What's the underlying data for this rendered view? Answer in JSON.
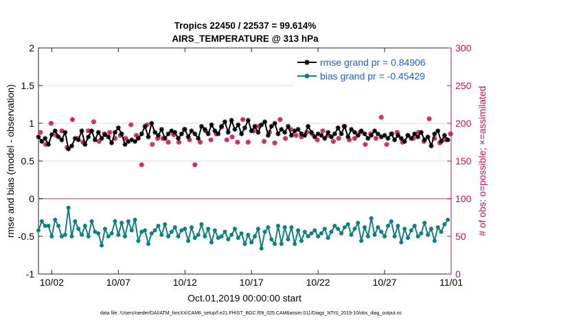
{
  "chart_data": {
    "type": "line",
    "title_line1": "Tropics 22450 / 22537 = 99.614%",
    "title_line2": "AIRS_TEMPERATURE @ 313 hPa",
    "xlabel": "Oct.01,2019 00:00:00 start",
    "ylabel_left": "rmse and bias (model - observation)",
    "ylabel_right": "# of obs: o=possible; ×=assimilated",
    "footnote": "data file: /Users/raeder/DAI/ATM_forcXX/CAM6_setup/f.e21.FHIST_BGC.f09_025.CAM6assim.011/Diags_NTrS_2019-10/obs_diag_output.nc",
    "xlim": [
      0,
      31
    ],
    "ylim_left": [
      -1,
      2
    ],
    "ylim_right": [
      0,
      300
    ],
    "x_ticks": [
      1,
      6,
      11,
      16,
      21,
      26,
      31
    ],
    "x_tick_labels": [
      "10/02",
      "10/07",
      "10/12",
      "10/17",
      "10/22",
      "10/27",
      "11/01"
    ],
    "y_left_ticks": [
      "-1",
      "-0.5",
      "0",
      "0.5",
      "1",
      "1.5",
      "2"
    ],
    "y_right_ticks": [
      "0",
      "50",
      "100",
      "150",
      "200",
      "250",
      "300"
    ],
    "colors": {
      "rmse": "#000000",
      "bias": "#0e8080",
      "obs": "#cc0a50",
      "right_axis": "#cc0a50",
      "legend_text": "#1a5fd6"
    },
    "series": [
      {
        "name": "rmse grand pr = 0.84906",
        "color": "#000000",
        "x": [
          0.0,
          0.25,
          0.5,
          0.75,
          1.0,
          1.25,
          1.5,
          1.75,
          2.0,
          2.25,
          2.5,
          2.75,
          3.0,
          3.25,
          3.5,
          3.75,
          4.0,
          4.25,
          4.5,
          4.75,
          5.0,
          5.25,
          5.5,
          5.75,
          6.0,
          6.25,
          6.5,
          6.75,
          7.0,
          7.25,
          7.5,
          7.75,
          8.0,
          8.25,
          8.5,
          8.75,
          9.0,
          9.25,
          9.5,
          9.75,
          10.0,
          10.25,
          10.5,
          10.75,
          11.0,
          11.25,
          11.5,
          11.75,
          12.0,
          12.25,
          12.5,
          12.75,
          13.0,
          13.25,
          13.5,
          13.75,
          14.0,
          14.25,
          14.5,
          14.75,
          15.0,
          15.25,
          15.5,
          15.75,
          16.0,
          16.25,
          16.5,
          16.75,
          17.0,
          17.25,
          17.5,
          17.75,
          18.0,
          18.25,
          18.5,
          18.75,
          19.0,
          19.25,
          19.5,
          19.75,
          20.0,
          20.25,
          20.5,
          20.75,
          21.0,
          21.25,
          21.5,
          21.75,
          22.0,
          22.25,
          22.5,
          22.75,
          23.0,
          23.25,
          23.5,
          23.75,
          24.0,
          24.25,
          24.5,
          24.75,
          25.0,
          25.25,
          25.5,
          25.75,
          26.0,
          26.25,
          26.5,
          26.75,
          27.0,
          27.25,
          27.5,
          27.75,
          28.0,
          28.25,
          28.5,
          28.75,
          29.0,
          29.25,
          29.5,
          29.75,
          30.0,
          30.25,
          30.5,
          30.75
        ],
        "values": [
          0.82,
          0.76,
          0.8,
          0.72,
          0.85,
          0.9,
          0.82,
          0.78,
          0.88,
          0.66,
          0.7,
          0.8,
          0.78,
          0.9,
          0.72,
          0.82,
          0.9,
          0.78,
          0.88,
          0.8,
          0.85,
          0.82,
          0.74,
          0.88,
          0.94,
          0.86,
          0.72,
          0.76,
          0.78,
          0.76,
          0.8,
          0.86,
          0.96,
          0.82,
          1.0,
          0.88,
          0.84,
          0.92,
          0.8,
          0.86,
          0.9,
          0.88,
          0.8,
          0.86,
          0.92,
          0.82,
          0.9,
          0.86,
          0.8,
          0.96,
          0.92,
          0.86,
          0.98,
          0.9,
          0.86,
          0.96,
          1.02,
          0.88,
          1.04,
          0.92,
          0.98,
          0.86,
          0.94,
          1.04,
          0.9,
          0.96,
          0.88,
          0.98,
          1.02,
          0.84,
          0.96,
          1.0,
          0.86,
          0.92,
          0.88,
          0.96,
          0.84,
          0.9,
          0.92,
          0.86,
          0.84,
          0.96,
          0.88,
          0.82,
          0.86,
          0.84,
          0.8,
          0.88,
          0.82,
          0.86,
          0.94,
          0.86,
          0.96,
          0.82,
          0.92,
          0.88,
          0.84,
          0.9,
          0.86,
          0.8,
          0.84,
          0.9,
          0.86,
          0.82,
          0.84,
          0.8,
          0.86,
          0.78,
          0.84,
          0.8,
          0.76,
          0.84,
          0.8,
          0.86,
          0.82,
          0.88,
          0.78,
          0.82,
          0.7,
          0.86,
          0.9,
          0.76,
          0.84,
          0.78
        ],
        "marker": "asterisk"
      },
      {
        "name": "bias grand pr = -0.45429",
        "color": "#0e8080",
        "x": [
          0.0,
          0.25,
          0.5,
          0.75,
          1.0,
          1.25,
          1.5,
          1.75,
          2.0,
          2.25,
          2.5,
          2.75,
          3.0,
          3.25,
          3.5,
          3.75,
          4.0,
          4.25,
          4.5,
          4.75,
          5.0,
          5.25,
          5.5,
          5.75,
          6.0,
          6.25,
          6.5,
          6.75,
          7.0,
          7.25,
          7.5,
          7.75,
          8.0,
          8.25,
          8.5,
          8.75,
          9.0,
          9.25,
          9.5,
          9.75,
          10.0,
          10.25,
          10.5,
          10.75,
          11.0,
          11.25,
          11.5,
          11.75,
          12.0,
          12.25,
          12.5,
          12.75,
          13.0,
          13.25,
          13.5,
          13.75,
          14.0,
          14.25,
          14.5,
          14.75,
          15.0,
          15.25,
          15.5,
          15.75,
          16.0,
          16.25,
          16.5,
          16.75,
          17.0,
          17.25,
          17.5,
          17.75,
          18.0,
          18.25,
          18.5,
          18.75,
          19.0,
          19.25,
          19.5,
          19.75,
          20.0,
          20.25,
          20.5,
          20.75,
          21.0,
          21.25,
          21.5,
          21.75,
          22.0,
          22.25,
          22.5,
          22.75,
          23.0,
          23.25,
          23.5,
          23.75,
          24.0,
          24.25,
          24.5,
          24.75,
          25.0,
          25.25,
          25.5,
          25.75,
          26.0,
          26.25,
          26.5,
          26.75,
          27.0,
          27.25,
          27.5,
          27.75,
          28.0,
          28.25,
          28.5,
          28.75,
          29.0,
          29.25,
          29.5,
          29.75,
          30.0,
          30.25,
          30.5,
          30.75
        ],
        "values": [
          -0.42,
          -0.3,
          -0.36,
          -0.36,
          -0.5,
          -0.28,
          -0.36,
          -0.5,
          -0.48,
          -0.12,
          -0.5,
          -0.3,
          -0.4,
          -0.48,
          -0.36,
          -0.5,
          -0.3,
          -0.44,
          -0.46,
          -0.62,
          -0.4,
          -0.5,
          -0.46,
          -0.3,
          -0.48,
          -0.32,
          -0.5,
          -0.3,
          -0.42,
          -0.28,
          -0.56,
          -0.44,
          -0.42,
          -0.6,
          -0.46,
          -0.42,
          -0.36,
          -0.48,
          -0.34,
          -0.5,
          -0.44,
          -0.38,
          -0.5,
          -0.42,
          -0.4,
          -0.56,
          -0.38,
          -0.52,
          -0.48,
          -0.34,
          -0.5,
          -0.4,
          -0.58,
          -0.42,
          -0.52,
          -0.5,
          -0.44,
          -0.54,
          -0.48,
          -0.4,
          -0.52,
          -0.46,
          -0.6,
          -0.48,
          -0.58,
          -0.5,
          -0.4,
          -0.66,
          -0.44,
          -0.38,
          -0.54,
          -0.6,
          -0.36,
          -0.6,
          -0.38,
          -0.54,
          -0.38,
          -0.6,
          -0.42,
          -0.56,
          -0.44,
          -0.5,
          -0.46,
          -0.42,
          -0.5,
          -0.46,
          -0.4,
          -0.52,
          -0.44,
          -0.36,
          -0.4,
          -0.46,
          -0.38,
          -0.34,
          -0.48,
          -0.4,
          -0.32,
          -0.56,
          -0.38,
          -0.5,
          -0.26,
          -0.48,
          -0.38,
          -0.44,
          -0.5,
          -0.36,
          -0.3,
          -0.5,
          -0.36,
          -0.58,
          -0.4,
          -0.52,
          -0.42,
          -0.36,
          -0.5,
          -0.46,
          -0.32,
          -0.48,
          -0.4,
          -0.56,
          -0.38,
          -0.44,
          -0.34,
          -0.28
        ],
        "marker": "circle"
      },
      {
        "name": "# of obs possible",
        "axis": "right",
        "color": "#cc0a50",
        "x": [
          0.15,
          0.55,
          0.95,
          1.35,
          1.75,
          2.15,
          2.55,
          2.95,
          3.35,
          3.75,
          4.15,
          4.55,
          4.95,
          5.35,
          5.75,
          6.15,
          6.55,
          6.95,
          7.35,
          7.75,
          8.15,
          8.55,
          8.95,
          9.35,
          9.75,
          10.15,
          10.55,
          10.95,
          11.35,
          11.75,
          12.15,
          12.55,
          12.95,
          13.35,
          13.75,
          14.15,
          14.55,
          14.95,
          15.35,
          15.75,
          16.15,
          16.55,
          16.95,
          17.35,
          17.75,
          18.15,
          18.55,
          18.95,
          19.35,
          19.75,
          20.15,
          20.55,
          20.95,
          21.35,
          21.75,
          22.15,
          22.55,
          22.95,
          23.35,
          23.75,
          24.15,
          24.55,
          24.95,
          25.35,
          25.75,
          26.15,
          26.55,
          26.95,
          27.35,
          27.75,
          28.15,
          28.55,
          28.95,
          29.35,
          29.75,
          30.15,
          30.55,
          30.95
        ],
        "values": [
          188,
          172,
          200,
          184,
          190,
          168,
          205,
          180,
          175,
          190,
          202,
          176,
          186,
          188,
          180,
          184,
          180,
          198,
          184,
          145,
          198,
          172,
          180,
          180,
          175,
          185,
          175,
          192,
          178,
          145,
          175,
          190,
          178,
          186,
          195,
          178,
          182,
          175,
          205,
          175,
          190,
          196,
          176,
          188,
          174,
          205,
          180,
          192,
          184,
          182,
          188,
          186,
          178,
          190,
          184,
          176,
          180,
          196,
          178,
          180,
          188,
          172,
          186,
          180,
          208,
          172,
          186,
          188,
          175,
          184,
          180,
          188,
          176,
          206,
          180,
          174,
          178,
          186
        ],
        "marker": "circle-open"
      },
      {
        "name": "# of obs assimilated",
        "axis": "right",
        "color": "#cc0a50",
        "x": [
          0.15,
          0.55,
          0.95,
          1.35,
          1.75,
          2.15,
          2.55,
          2.95,
          3.35,
          3.75,
          4.15,
          4.55,
          4.95,
          5.35,
          5.75,
          6.15,
          6.55,
          6.95,
          7.35,
          7.75,
          8.15,
          8.55,
          8.95,
          9.35,
          9.75,
          10.15,
          10.55,
          10.95,
          11.35,
          11.75,
          12.15,
          12.55,
          12.95,
          13.35,
          13.75,
          14.15,
          14.55,
          14.95,
          15.35,
          15.75,
          16.15,
          16.55,
          16.95,
          17.35,
          17.75,
          18.15,
          18.55,
          18.95,
          19.35,
          19.75,
          20.15,
          20.55,
          20.95,
          21.35,
          21.75,
          22.15,
          22.55,
          22.95,
          23.35,
          23.75,
          24.15,
          24.55,
          24.95,
          25.35,
          25.75,
          26.15,
          26.55,
          26.95,
          27.35,
          27.75,
          28.15,
          28.55,
          28.95,
          29.35,
          29.75,
          30.15,
          30.55,
          30.95
        ],
        "values": [
          188,
          172,
          200,
          184,
          190,
          168,
          205,
          180,
          175,
          190,
          202,
          176,
          186,
          188,
          180,
          184,
          180,
          198,
          184,
          145,
          198,
          172,
          180,
          180,
          175,
          185,
          175,
          192,
          178,
          145,
          175,
          190,
          178,
          186,
          195,
          178,
          182,
          175,
          205,
          175,
          190,
          196,
          176,
          188,
          174,
          205,
          180,
          192,
          184,
          182,
          188,
          186,
          178,
          190,
          184,
          176,
          180,
          196,
          178,
          180,
          188,
          172,
          186,
          180,
          208,
          172,
          186,
          188,
          175,
          184,
          180,
          188,
          176,
          206,
          180,
          174,
          178,
          186
        ],
        "marker": "cross"
      }
    ]
  }
}
